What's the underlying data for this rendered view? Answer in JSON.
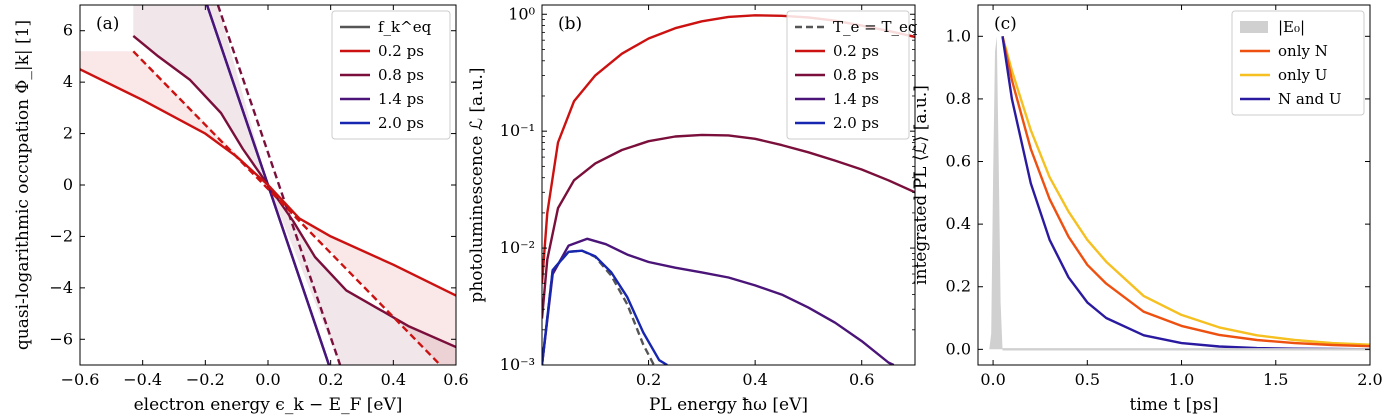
{
  "chart_data": [
    {
      "type": "line",
      "panel_label": "(a)",
      "xlabel": "electron energy ϵ_k − E_F [eV]",
      "ylabel": "quasi-logarithmic occupation Φ_|k| [1]",
      "xlim": [
        -0.6,
        0.6
      ],
      "ylim": [
        -7,
        7
      ],
      "xticks": [
        -0.6,
        -0.4,
        -0.2,
        0.0,
        0.2,
        0.4,
        0.6
      ],
      "xtick_labels": [
        "−0.6",
        "−0.4",
        "−0.2",
        "0.0",
        "0.2",
        "0.4",
        "0.6"
      ],
      "yticks": [
        -6,
        -4,
        -2,
        0,
        2,
        4,
        6
      ],
      "ytick_labels": [
        "−6",
        "−4",
        "−2",
        "0",
        "2",
        "4",
        "6"
      ],
      "legend": [
        {
          "label": "f_k^eq",
          "color": "#555555",
          "style": "solid"
        },
        {
          "label": "0.2 ps",
          "color": "#cc1111",
          "style": "solid"
        },
        {
          "label": "0.8 ps",
          "color": "#7a0f3c",
          "style": "solid"
        },
        {
          "label": "1.4 ps",
          "color": "#4a1478",
          "style": "solid"
        },
        {
          "label": "2.0 ps",
          "color": "#1626b0",
          "style": "solid"
        }
      ],
      "series": [
        {
          "name": "2.0 ps",
          "color": "#1626b0",
          "style": "solid",
          "x": [
            -0.2,
            0.2
          ],
          "y": [
            7.2,
            -7.2
          ]
        },
        {
          "name": "1.4 ps",
          "color": "#4a1478",
          "style": "solid",
          "x": [
            -0.2,
            0.2
          ],
          "y": [
            7.2,
            -7.2
          ]
        },
        {
          "name": "0.8 ps",
          "color": "#7a0f3c",
          "style": "solid",
          "x": [
            -0.43,
            -0.35,
            -0.25,
            -0.15,
            -0.08,
            0.0,
            0.08,
            0.15,
            0.25,
            0.35,
            0.45,
            0.6
          ],
          "y": [
            5.8,
            5.0,
            4.1,
            2.8,
            1.4,
            0.0,
            -1.4,
            -2.8,
            -4.1,
            -4.8,
            -5.5,
            -6.3
          ]
        },
        {
          "name": "0.8 ps eq",
          "color": "#7a0f3c",
          "style": "dashed",
          "x": [
            -0.16,
            0.23
          ],
          "y": [
            7.0,
            -7.0
          ]
        },
        {
          "name": "0.2 ps",
          "color": "#cc1111",
          "style": "solid",
          "x": [
            -0.6,
            -0.4,
            -0.2,
            -0.1,
            0.0,
            0.1,
            0.2,
            0.4,
            0.6
          ],
          "y": [
            4.5,
            3.3,
            2.0,
            1.1,
            0.0,
            -1.3,
            -2.0,
            -3.1,
            -4.3
          ]
        },
        {
          "name": "0.2 ps eq",
          "color": "#cc1111",
          "style": "dashed",
          "x": [
            -0.43,
            0.55
          ],
          "y": [
            5.2,
            -7.0
          ]
        }
      ],
      "bands": [
        {
          "color": "#cc1111",
          "opacity": 0.1,
          "x": [
            -0.6,
            -0.43,
            -0.43,
            0.0,
            0.55,
            0.6,
            0.6,
            0.4,
            0.2,
            0.1,
            0.0,
            -0.1,
            -0.2,
            -0.4,
            -0.6
          ],
          "y": [
            5.2,
            5.2,
            5.2,
            0.0,
            -7.0,
            -7.0,
            -4.3,
            -3.1,
            -2.0,
            -1.3,
            0.0,
            1.1,
            2.0,
            3.3,
            4.5
          ]
        },
        {
          "color": "#7a0f3c",
          "opacity": 0.1,
          "x": [
            -0.43,
            -0.43,
            -0.16,
            0.0,
            0.23,
            0.6,
            0.6,
            0.45,
            0.35,
            0.25,
            0.15,
            0.08,
            0.0,
            -0.08,
            -0.15,
            -0.25,
            -0.35
          ],
          "y": [
            5.8,
            7.0,
            7.0,
            0.0,
            -7.0,
            -7.0,
            -6.3,
            -5.5,
            -4.8,
            -4.1,
            -2.8,
            -1.4,
            0.0,
            1.4,
            2.8,
            4.1,
            5.0
          ]
        }
      ]
    },
    {
      "type": "line",
      "panel_label": "(b)",
      "yscale": "log",
      "xlabel": "PL energy ħω [eV]",
      "ylabel": "photoluminescence ℒ [a.u.]",
      "xlim": [
        0.0,
        0.7
      ],
      "ylim": [
        0.001,
        1.2
      ],
      "xticks": [
        0.2,
        0.4,
        0.6
      ],
      "xtick_labels": [
        "0.2",
        "0.4",
        "0.6"
      ],
      "yticks": [
        0.001,
        0.01,
        0.1,
        1.0
      ],
      "ytick_labels": [
        "10⁻³",
        "10⁻²",
        "10⁻¹",
        "10⁰"
      ],
      "legend": [
        {
          "label": "T_e = T_eq",
          "color": "#555555",
          "style": "dashed"
        },
        {
          "label": "0.2 ps",
          "color": "#cc1111",
          "style": "solid"
        },
        {
          "label": "0.8 ps",
          "color": "#7a0f3c",
          "style": "solid"
        },
        {
          "label": "1.4 ps",
          "color": "#4a1478",
          "style": "solid"
        },
        {
          "label": "2.0 ps",
          "color": "#1626b0",
          "style": "solid"
        }
      ],
      "series": [
        {
          "name": "0.2 ps",
          "color": "#cc1111",
          "style": "solid",
          "x": [
            0.0,
            0.01,
            0.03,
            0.06,
            0.1,
            0.15,
            0.2,
            0.25,
            0.3,
            0.35,
            0.4,
            0.45,
            0.5,
            0.55,
            0.6,
            0.65,
            0.7
          ],
          "y": [
            0.005,
            0.02,
            0.08,
            0.18,
            0.3,
            0.46,
            0.62,
            0.76,
            0.87,
            0.95,
            0.98,
            0.97,
            0.94,
            0.88,
            0.8,
            0.72,
            0.64
          ]
        },
        {
          "name": "0.8 ps",
          "color": "#7a0f3c",
          "style": "solid",
          "x": [
            0.0,
            0.01,
            0.03,
            0.06,
            0.1,
            0.15,
            0.2,
            0.25,
            0.3,
            0.35,
            0.4,
            0.45,
            0.5,
            0.55,
            0.6,
            0.65,
            0.7
          ],
          "y": [
            0.0025,
            0.008,
            0.022,
            0.038,
            0.053,
            0.069,
            0.082,
            0.09,
            0.093,
            0.092,
            0.086,
            0.076,
            0.066,
            0.056,
            0.047,
            0.038,
            0.03
          ]
        },
        {
          "name": "1.4 ps",
          "color": "#4a1478",
          "style": "solid",
          "x": [
            0.0,
            0.02,
            0.05,
            0.085,
            0.12,
            0.16,
            0.2,
            0.25,
            0.3,
            0.35,
            0.4,
            0.45,
            0.5,
            0.55,
            0.6,
            0.65,
            0.66
          ],
          "y": [
            0.001,
            0.006,
            0.0105,
            0.012,
            0.0108,
            0.0088,
            0.0076,
            0.0068,
            0.0062,
            0.0056,
            0.0048,
            0.004,
            0.0031,
            0.0023,
            0.0016,
            0.00105,
            0.001
          ]
        },
        {
          "name": "T_e = T_eq",
          "color": "#555555",
          "style": "dashed",
          "x": [
            0.0,
            0.02,
            0.05,
            0.075,
            0.1,
            0.13,
            0.16,
            0.19,
            0.21
          ],
          "y": [
            0.001,
            0.0065,
            0.0093,
            0.0095,
            0.0084,
            0.0058,
            0.0033,
            0.0015,
            0.001
          ]
        },
        {
          "name": "2.0 ps",
          "color": "#1626b0",
          "style": "solid",
          "x": [
            0.0,
            0.02,
            0.05,
            0.075,
            0.1,
            0.13,
            0.16,
            0.19,
            0.22,
            0.235
          ],
          "y": [
            0.001,
            0.0065,
            0.0093,
            0.0095,
            0.0085,
            0.0062,
            0.0038,
            0.0019,
            0.0011,
            0.001
          ]
        }
      ]
    },
    {
      "type": "line",
      "panel_label": "(c)",
      "xlabel": "time t [ps]",
      "ylabel": "integrated PL ⟨ℒ⟩ [a.u.]",
      "xlim": [
        -0.08,
        2.0
      ],
      "ylim": [
        -0.05,
        1.1
      ],
      "xticks": [
        0.0,
        0.5,
        1.0,
        1.5,
        2.0
      ],
      "xtick_labels": [
        "0.0",
        "0.5",
        "1.0",
        "1.5",
        "2.0"
      ],
      "yticks": [
        0.0,
        0.2,
        0.4,
        0.6,
        0.8,
        1.0
      ],
      "ytick_labels": [
        "0.0",
        "0.2",
        "0.4",
        "0.6",
        "0.8",
        "1.0"
      ],
      "legend": [
        {
          "label": "|E₀|",
          "color": "#d0d0d0",
          "style": "fill"
        },
        {
          "label": "only N",
          "color": "#ee5010",
          "style": "solid"
        },
        {
          "label": "only U",
          "color": "#f5c020",
          "style": "solid"
        },
        {
          "label": "N and U",
          "color": "#2a1aa0",
          "style": "solid"
        }
      ],
      "pulse": {
        "label": "|E₀|",
        "color": "#d0d0d0",
        "x": [
          -0.08,
          -0.02,
          -0.01,
          0.0,
          0.01,
          0.02,
          0.03,
          0.04,
          0.05,
          2.0
        ],
        "y": [
          0.0,
          0.0,
          0.05,
          0.55,
          0.95,
          1.0,
          0.6,
          0.15,
          0.0,
          0.0
        ]
      },
      "series": [
        {
          "name": "only U",
          "color": "#f5c020",
          "style": "solid",
          "x": [
            0.05,
            0.1,
            0.2,
            0.3,
            0.4,
            0.5,
            0.6,
            0.8,
            1.0,
            1.2,
            1.4,
            1.6,
            1.8,
            2.0
          ],
          "y": [
            1.0,
            0.89,
            0.7,
            0.55,
            0.44,
            0.35,
            0.28,
            0.17,
            0.11,
            0.07,
            0.045,
            0.03,
            0.02,
            0.015
          ]
        },
        {
          "name": "only N",
          "color": "#ee5010",
          "style": "solid",
          "x": [
            0.05,
            0.1,
            0.2,
            0.3,
            0.4,
            0.5,
            0.6,
            0.8,
            1.0,
            1.2,
            1.4,
            1.6,
            1.8,
            2.0
          ],
          "y": [
            1.0,
            0.86,
            0.64,
            0.48,
            0.36,
            0.27,
            0.21,
            0.12,
            0.075,
            0.046,
            0.03,
            0.02,
            0.014,
            0.01
          ]
        },
        {
          "name": "N and U",
          "color": "#2a1aa0",
          "style": "solid",
          "x": [
            0.05,
            0.1,
            0.2,
            0.3,
            0.4,
            0.5,
            0.6,
            0.8,
            1.0,
            1.2,
            1.4,
            1.6,
            1.8,
            2.0
          ],
          "y": [
            1.0,
            0.8,
            0.53,
            0.35,
            0.23,
            0.15,
            0.1,
            0.045,
            0.02,
            0.009,
            0.004,
            0.002,
            0.001,
            0.0
          ]
        },
        {
          "name": "baseline",
          "color": "#d0d0d0",
          "style": "solid",
          "x": [
            0.05,
            2.0
          ],
          "y": [
            0.0,
            0.0
          ]
        }
      ]
    }
  ]
}
